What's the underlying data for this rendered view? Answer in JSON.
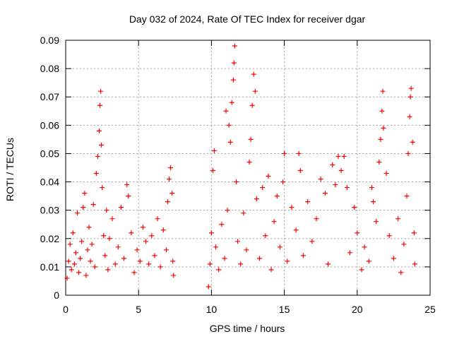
{
  "chart_data": {
    "type": "scatter",
    "title": "Day 032 of 2024, Rate Of TEC Index for receiver dgar",
    "xlabel": "GPS time / hours",
    "ylabel": "ROTI / TECUs",
    "xlim": [
      0,
      25
    ],
    "ylim": [
      0,
      0.09
    ],
    "x_ticks": [
      0,
      5,
      10,
      15,
      20,
      25
    ],
    "x_tick_labels": [
      "0",
      "5",
      "10",
      "15",
      "20",
      "25"
    ],
    "y_ticks": [
      0,
      0.01,
      0.02,
      0.03,
      0.04,
      0.05,
      0.06,
      0.07,
      0.08,
      0.09
    ],
    "y_tick_labels": [
      "0",
      "0.01",
      "0.02",
      "0.03",
      "0.04",
      "0.05",
      "0.06",
      "0.07",
      "0.08",
      "0.09"
    ],
    "grid": true,
    "marker": "+",
    "marker_color": "#ff0000",
    "series": [
      {
        "name": "ROTI",
        "points": [
          [
            0.1,
            0.006
          ],
          [
            0.2,
            0.012
          ],
          [
            0.3,
            0.018
          ],
          [
            0.4,
            0.009
          ],
          [
            0.5,
            0.022
          ],
          [
            0.6,
            0.011
          ],
          [
            0.7,
            0.015
          ],
          [
            0.8,
            0.029
          ],
          [
            0.9,
            0.008
          ],
          [
            1.0,
            0.013
          ],
          [
            1.1,
            0.019
          ],
          [
            1.2,
            0.031
          ],
          [
            1.3,
            0.036
          ],
          [
            1.4,
            0.007
          ],
          [
            1.5,
            0.016
          ],
          [
            1.6,
            0.024
          ],
          [
            1.7,
            0.012
          ],
          [
            1.8,
            0.018
          ],
          [
            1.9,
            0.032
          ],
          [
            2.0,
            0.01
          ],
          [
            2.1,
            0.043
          ],
          [
            2.2,
            0.049
          ],
          [
            2.3,
            0.058
          ],
          [
            2.35,
            0.067
          ],
          [
            2.4,
            0.072
          ],
          [
            2.45,
            0.053
          ],
          [
            2.5,
            0.038
          ],
          [
            2.6,
            0.021
          ],
          [
            2.7,
            0.014
          ],
          [
            2.8,
            0.03
          ],
          [
            2.9,
            0.009
          ],
          [
            3.0,
            0.02
          ],
          [
            3.2,
            0.027
          ],
          [
            3.4,
            0.011
          ],
          [
            3.6,
            0.017
          ],
          [
            3.8,
            0.031
          ],
          [
            4.0,
            0.013
          ],
          [
            4.2,
            0.039
          ],
          [
            4.3,
            0.035
          ],
          [
            4.5,
            0.022
          ],
          [
            4.7,
            0.008
          ],
          [
            4.9,
            0.016
          ],
          [
            5.1,
            0.012
          ],
          [
            5.3,
            0.024
          ],
          [
            5.5,
            0.019
          ],
          [
            5.7,
            0.011
          ],
          [
            5.9,
            0.021
          ],
          [
            6.1,
            0.014
          ],
          [
            6.3,
            0.027
          ],
          [
            6.5,
            0.01
          ],
          [
            6.7,
            0.023
          ],
          [
            6.9,
            0.016
          ],
          [
            7.0,
            0.033
          ],
          [
            7.1,
            0.041
          ],
          [
            7.2,
            0.045
          ],
          [
            7.3,
            0.036
          ],
          [
            7.35,
            0.012
          ],
          [
            7.4,
            0.007
          ],
          [
            9.8,
            0.003
          ],
          [
            9.9,
            0.011
          ],
          [
            10.0,
            0.022
          ],
          [
            10.1,
            0.044
          ],
          [
            10.2,
            0.051
          ],
          [
            10.3,
            0.017
          ],
          [
            10.5,
            0.009
          ],
          [
            10.7,
            0.025
          ],
          [
            10.9,
            0.013
          ],
          [
            11.0,
            0.065
          ],
          [
            11.1,
            0.03
          ],
          [
            11.2,
            0.06
          ],
          [
            11.3,
            0.054
          ],
          [
            11.4,
            0.068
          ],
          [
            11.5,
            0.076
          ],
          [
            11.55,
            0.082
          ],
          [
            11.6,
            0.088
          ],
          [
            11.7,
            0.04
          ],
          [
            11.8,
            0.019
          ],
          [
            12.0,
            0.011
          ],
          [
            12.2,
            0.029
          ],
          [
            12.4,
            0.016
          ],
          [
            12.6,
            0.047
          ],
          [
            12.7,
            0.055
          ],
          [
            12.8,
            0.067
          ],
          [
            12.9,
            0.078
          ],
          [
            13.0,
            0.072
          ],
          [
            13.1,
            0.034
          ],
          [
            13.3,
            0.013
          ],
          [
            13.5,
            0.038
          ],
          [
            13.7,
            0.021
          ],
          [
            13.9,
            0.042
          ],
          [
            14.1,
            0.009
          ],
          [
            14.3,
            0.026
          ],
          [
            14.5,
            0.035
          ],
          [
            14.7,
            0.017
          ],
          [
            14.9,
            0.04
          ],
          [
            15.0,
            0.05
          ],
          [
            15.2,
            0.012
          ],
          [
            15.5,
            0.031
          ],
          [
            15.8,
            0.023
          ],
          [
            16.0,
            0.05
          ],
          [
            16.1,
            0.044
          ],
          [
            16.3,
            0.014
          ],
          [
            16.6,
            0.033
          ],
          [
            16.9,
            0.019
          ],
          [
            17.2,
            0.027
          ],
          [
            17.5,
            0.041
          ],
          [
            17.8,
            0.036
          ],
          [
            18.0,
            0.011
          ],
          [
            18.3,
            0.046
          ],
          [
            18.5,
            0.039
          ],
          [
            18.7,
            0.049
          ],
          [
            18.9,
            0.044
          ],
          [
            19.1,
            0.049
          ],
          [
            19.3,
            0.038
          ],
          [
            19.5,
            0.015
          ],
          [
            19.8,
            0.031
          ],
          [
            20.0,
            0.022
          ],
          [
            20.3,
            0.009
          ],
          [
            20.5,
            0.017
          ],
          [
            20.8,
            0.012
          ],
          [
            21.0,
            0.038
          ],
          [
            21.1,
            0.033
          ],
          [
            21.3,
            0.026
          ],
          [
            21.5,
            0.047
          ],
          [
            21.6,
            0.055
          ],
          [
            21.7,
            0.065
          ],
          [
            21.75,
            0.072
          ],
          [
            21.8,
            0.059
          ],
          [
            22.0,
            0.043
          ],
          [
            22.2,
            0.021
          ],
          [
            22.5,
            0.013
          ],
          [
            22.8,
            0.027
          ],
          [
            23.0,
            0.008
          ],
          [
            23.2,
            0.018
          ],
          [
            23.4,
            0.035
          ],
          [
            23.5,
            0.05
          ],
          [
            23.6,
            0.063
          ],
          [
            23.65,
            0.07
          ],
          [
            23.7,
            0.073
          ],
          [
            23.8,
            0.054
          ],
          [
            23.9,
            0.022
          ],
          [
            23.95,
            0.011
          ]
        ]
      }
    ]
  }
}
